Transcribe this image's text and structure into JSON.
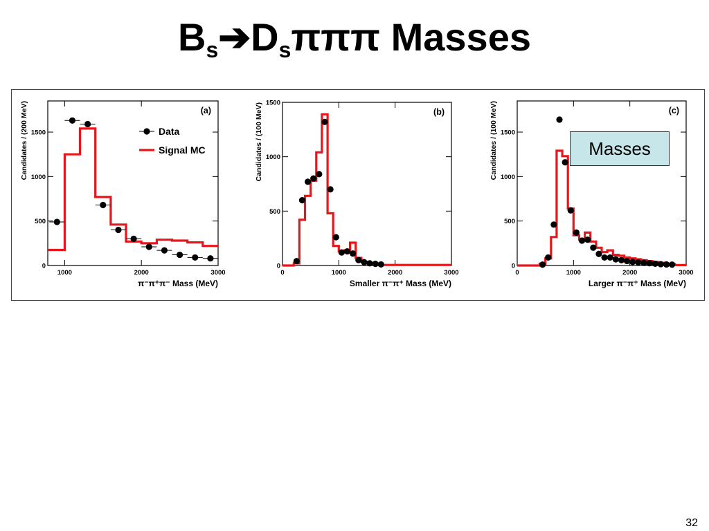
{
  "slide": {
    "title_main": "B",
    "title_sub1": "s",
    "title_arrow": "➔",
    "title_mid": "D",
    "title_sub2": "s",
    "title_end": "πππ Masses",
    "annotation": "Masses",
    "page_number": "32"
  },
  "colors": {
    "signal_mc": "#e8161b",
    "data": "#000000",
    "annotation_bg": "#c7e6ea"
  },
  "chart_data": [
    {
      "type": "histogram",
      "panel_label": "(a)",
      "xlabel": "π⁻π⁺π⁻ Mass (MeV)",
      "ylabel": "Candidates / (200 MeV)",
      "xlim": [
        780,
        3000
      ],
      "ylim": [
        0,
        1850
      ],
      "xticks": [
        1000,
        2000,
        3000
      ],
      "yticks": [
        0,
        500,
        1000,
        1500
      ],
      "legend": {
        "placement": "top-right",
        "data_label": "Data",
        "mc_label": "Signal MC"
      },
      "data": {
        "x": [
          900,
          1100,
          1300,
          1500,
          1700,
          1900,
          2100,
          2300,
          2500,
          2700,
          2900
        ],
        "y": [
          490,
          1630,
          1590,
          680,
          400,
          300,
          210,
          170,
          120,
          90,
          80
        ],
        "xerr": 100
      },
      "mc": {
        "edges": [
          780,
          1000,
          1200,
          1400,
          1600,
          1800,
          2000,
          2200,
          2400,
          2600,
          2800,
          3000
        ],
        "values": [
          175,
          1250,
          1540,
          770,
          460,
          270,
          250,
          290,
          280,
          260,
          220
        ]
      }
    },
    {
      "type": "histogram",
      "panel_label": "(b)",
      "xlabel": "Smaller π⁻π⁺ Mass (MeV)",
      "ylabel": "Candidates / (100 MeV)",
      "xlim": [
        0,
        3000
      ],
      "ylim": [
        0,
        1500
      ],
      "xticks": [
        0,
        1000,
        2000,
        3000
      ],
      "yticks": [
        0,
        500,
        1000,
        1500
      ],
      "data": {
        "x": [
          250,
          350,
          450,
          550,
          650,
          750,
          850,
          950,
          1050,
          1150,
          1250,
          1350,
          1450,
          1550,
          1650,
          1750
        ],
        "y": [
          40,
          600,
          770,
          800,
          840,
          1320,
          700,
          260,
          120,
          130,
          110,
          50,
          30,
          20,
          15,
          10
        ],
        "xerr": 50
      },
      "mc": {
        "edges": [
          0,
          200,
          300,
          400,
          500,
          600,
          700,
          800,
          900,
          1000,
          1100,
          1200,
          1300,
          1400,
          1500,
          1600,
          1700,
          3000
        ],
        "values": [
          0,
          20,
          420,
          640,
          780,
          1040,
          1390,
          480,
          180,
          130,
          140,
          210,
          70,
          35,
          20,
          10,
          5
        ]
      }
    },
    {
      "type": "histogram",
      "panel_label": "(c)",
      "xlabel": "Larger π⁻π⁺ Mass (MeV)",
      "ylabel": "Candidates / (100 MeV)",
      "xlim": [
        0,
        3000
      ],
      "ylim": [
        0,
        1850
      ],
      "xticks": [
        0,
        1000,
        2000,
        3000
      ],
      "yticks": [
        0,
        500,
        1000,
        1500
      ],
      "data": {
        "x": [
          450,
          550,
          650,
          750,
          850,
          950,
          1050,
          1150,
          1250,
          1350,
          1450,
          1550,
          1650,
          1750,
          1850,
          1950,
          2050,
          2150,
          2250,
          2350,
          2450,
          2550,
          2650,
          2750
        ],
        "y": [
          10,
          90,
          460,
          1640,
          1160,
          620,
          370,
          280,
          290,
          200,
          130,
          90,
          90,
          70,
          60,
          50,
          40,
          35,
          30,
          25,
          20,
          15,
          12,
          10
        ],
        "xerr": 50
      },
      "mc": {
        "edges": [
          0,
          400,
          500,
          600,
          700,
          800,
          900,
          1000,
          1100,
          1200,
          1300,
          1400,
          1500,
          1600,
          1700,
          1800,
          1900,
          2000,
          2100,
          2200,
          2300,
          2400,
          2500,
          2600,
          2700,
          2800,
          3000
        ],
        "values": [
          0,
          20,
          80,
          320,
          1290,
          1230,
          640,
          340,
          290,
          370,
          270,
          200,
          150,
          170,
          120,
          110,
          90,
          80,
          70,
          60,
          50,
          40,
          30,
          20,
          15,
          5
        ]
      }
    }
  ]
}
